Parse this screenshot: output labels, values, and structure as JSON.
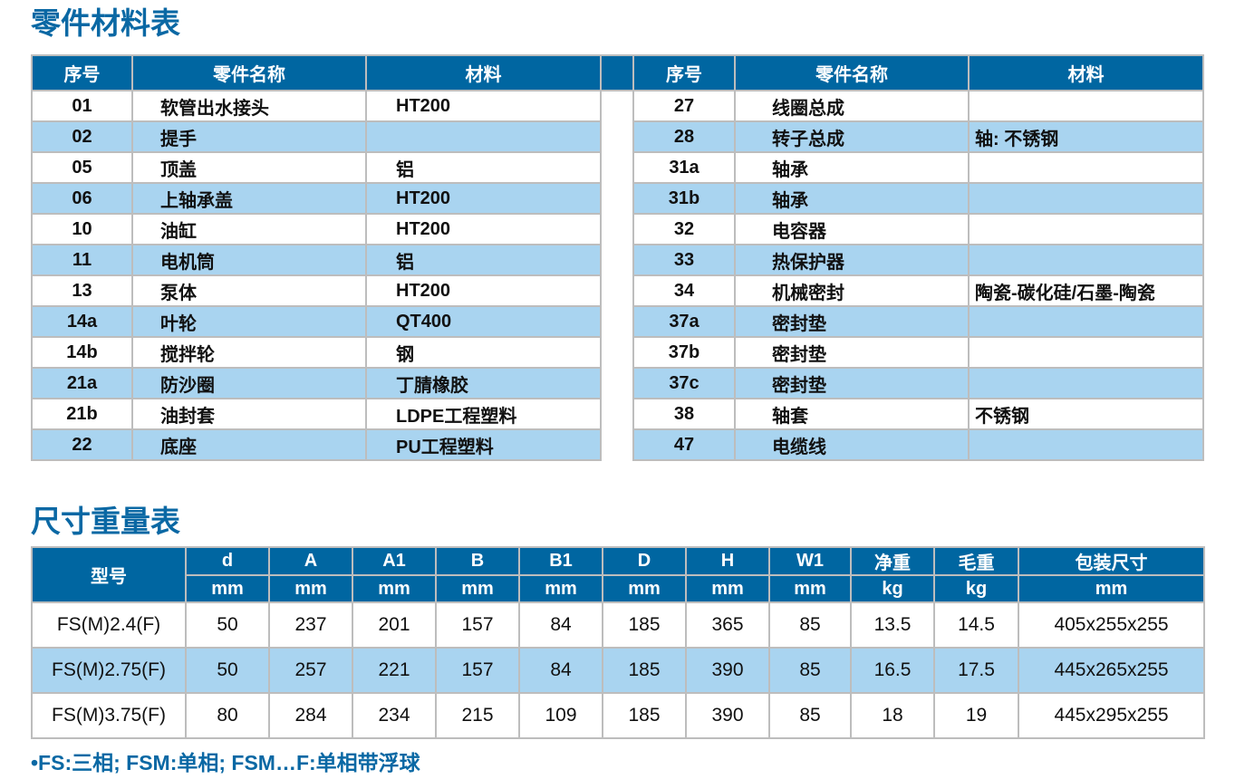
{
  "parts_title": "零件材料表",
  "parts_headers": [
    "序号",
    "零件名称",
    "材料"
  ],
  "parts_left": [
    [
      "01",
      "软管出水接头",
      "HT200"
    ],
    [
      "02",
      "提手",
      ""
    ],
    [
      "05",
      "顶盖",
      "铝"
    ],
    [
      "06",
      "上轴承盖",
      "HT200"
    ],
    [
      "10",
      "油缸",
      "HT200"
    ],
    [
      "11",
      "电机筒",
      "铝"
    ],
    [
      "13",
      "泵体",
      "HT200"
    ],
    [
      "14a",
      "叶轮",
      "QT400"
    ],
    [
      "14b",
      "搅拌轮",
      "钢"
    ],
    [
      "21a",
      "防沙圈",
      "丁腈橡胶"
    ],
    [
      "21b",
      "油封套",
      "LDPE工程塑料"
    ],
    [
      "22",
      "底座",
      "PU工程塑料"
    ]
  ],
  "parts_right": [
    [
      "27",
      "线圈总成",
      ""
    ],
    [
      "28",
      "转子总成",
      "轴: 不锈钢"
    ],
    [
      "31a",
      "轴承",
      ""
    ],
    [
      "31b",
      "轴承",
      ""
    ],
    [
      "32",
      "电容器",
      ""
    ],
    [
      "33",
      "热保护器",
      ""
    ],
    [
      "34",
      "机械密封",
      "陶瓷-碳化硅/石墨-陶瓷"
    ],
    [
      "37a",
      "密封垫",
      ""
    ],
    [
      "37b",
      "密封垫",
      ""
    ],
    [
      "37c",
      "密封垫",
      ""
    ],
    [
      "38",
      "轴套",
      "不锈钢"
    ],
    [
      "47",
      "电缆线",
      ""
    ]
  ],
  "dims_title": "尺寸重量表",
  "dims_model_header": "型号",
  "dims_headers": [
    "d",
    "A",
    "A1",
    "B",
    "B1",
    "D",
    "H",
    "W1",
    "净重",
    "毛重",
    "包装尺寸"
  ],
  "dims_units": [
    "mm",
    "mm",
    "mm",
    "mm",
    "mm",
    "mm",
    "mm",
    "mm",
    "kg",
    "kg",
    "mm"
  ],
  "dims_rows": [
    [
      "FS(M)2.4(F)",
      "50",
      "237",
      "201",
      "157",
      "84",
      "185",
      "365",
      "85",
      "13.5",
      "14.5",
      "405x255x255"
    ],
    [
      "FS(M)2.75(F)",
      "50",
      "257",
      "221",
      "157",
      "84",
      "185",
      "390",
      "85",
      "16.5",
      "17.5",
      "445x265x255"
    ],
    [
      "FS(M)3.75(F)",
      "80",
      "284",
      "234",
      "215",
      "109",
      "185",
      "390",
      "85",
      "18",
      "19",
      "445x295x255"
    ]
  ],
  "note": "•FS:三相; FSM:单相; FSM…F:单相带浮球",
  "colors": {
    "header": "#0066a1",
    "alt_row": "#a9d4f0",
    "title": "#0a68a4"
  }
}
